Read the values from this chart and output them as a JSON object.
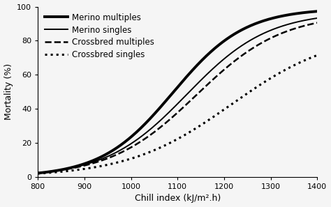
{
  "title": "",
  "xlabel": "Chill index (kJ/m².h)",
  "ylabel": "Mortality (%)",
  "xlim": [
    800,
    1400
  ],
  "ylim": [
    0,
    100
  ],
  "xticks": [
    800,
    900,
    1000,
    1100,
    1200,
    1300,
    1400
  ],
  "yticks": [
    0,
    20,
    40,
    60,
    80,
    100
  ],
  "series": [
    {
      "label": "Merino multiples",
      "color": "black",
      "linestyle": "solid",
      "linewidth": 2.8,
      "logistic_L": 99,
      "logistic_k": 0.013,
      "logistic_x0": 1090
    },
    {
      "label": "Merino singles",
      "color": "black",
      "linestyle": "solid",
      "linewidth": 1.4,
      "logistic_L": 97,
      "logistic_k": 0.0115,
      "logistic_x0": 1120
    },
    {
      "label": "Crossbred multiples",
      "color": "black",
      "linestyle": "dashed",
      "linewidth": 1.8,
      "logistic_L": 96,
      "logistic_k": 0.0108,
      "logistic_x0": 1140
    },
    {
      "label": "Crossbred singles",
      "color": "black",
      "linestyle": "dotted",
      "linewidth": 2.2,
      "logistic_L": 85,
      "logistic_k": 0.009,
      "logistic_x0": 1215
    }
  ],
  "legend_loc": "upper left",
  "legend_fontsize": 8.5,
  "background_color": "#f5f5f5",
  "grid": false
}
